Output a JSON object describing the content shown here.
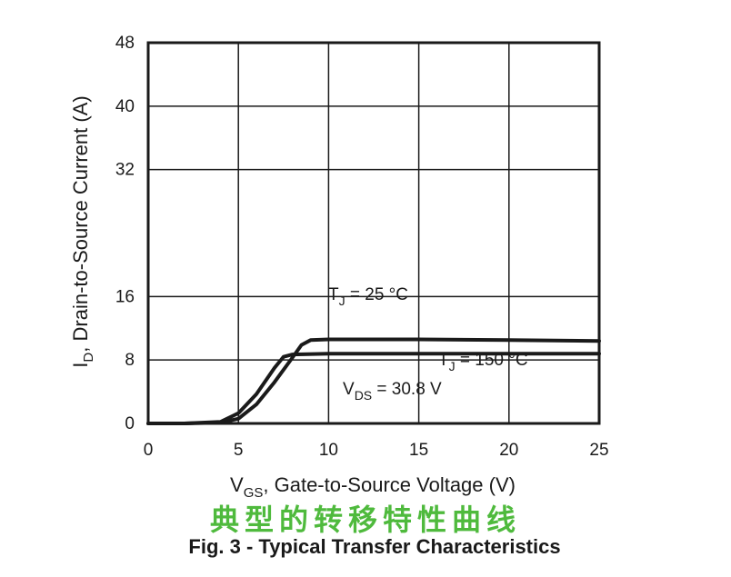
{
  "chart_data": {
    "type": "line",
    "title": "Fig. 3 - Typical Transfer Characteristics",
    "xlabel": {
      "main": "V",
      "sub": "GS",
      "rest": ", Gate-to-Source Voltage (V)"
    },
    "ylabel": {
      "main": "I",
      "sub": "D",
      "rest": ", Drain-to-Source Current (A)"
    },
    "xlim": [
      0,
      25
    ],
    "ylim": [
      0,
      48
    ],
    "xticks": [
      "0",
      "5",
      "10",
      "15",
      "20",
      "25"
    ],
    "yticks": [
      "0",
      "8",
      "16",
      "32",
      "40",
      "48"
    ],
    "grid": true,
    "series": [
      {
        "name": "TJ = 25 °C",
        "x": [
          0,
          2,
          4,
          5,
          6,
          7,
          8,
          8.5,
          9,
          10,
          15,
          20,
          25
        ],
        "y": [
          0,
          0,
          0.1,
          0.6,
          2.4,
          5.2,
          8.3,
          9.9,
          10.5,
          10.6,
          10.6,
          10.5,
          10.4
        ]
      },
      {
        "name": "TJ = 150 °C",
        "x": [
          0,
          2,
          4,
          5,
          6,
          7,
          7.5,
          8,
          10,
          15,
          20,
          25
        ],
        "y": [
          0,
          0,
          0.2,
          1.3,
          3.7,
          7.0,
          8.4,
          8.7,
          8.8,
          8.8,
          8.8,
          8.8
        ]
      }
    ],
    "annotations": {
      "tj25": {
        "main": "T",
        "sub": "J",
        "rest": " = 25 °C"
      },
      "tj150": {
        "main": "T",
        "sub": "J",
        "rest": " = 150 °C"
      },
      "vds": {
        "main": "V",
        "sub": "DS",
        "rest": " = 30.8 V"
      }
    }
  },
  "overlay_text": "典型的转移特性曲线",
  "colors": {
    "ink": "#1a1a1a",
    "overlay": "#4fba3d"
  }
}
